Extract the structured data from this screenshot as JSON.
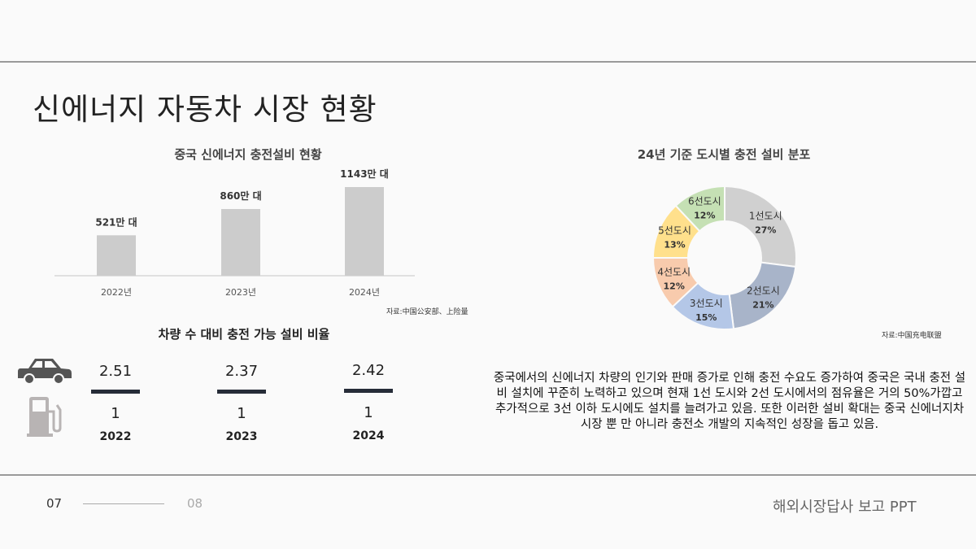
{
  "title": "신에너지 자동차 시장 현황",
  "chart_data": [
    {
      "type": "bar",
      "title": "중국 신에너지 충전설비 현황",
      "categories": [
        "2022년",
        "2023년",
        "2024년"
      ],
      "values": [
        521,
        860,
        1143
      ],
      "data_labels": [
        "521만 대",
        "860만 대",
        "1143만 대"
      ],
      "unit": "만 대",
      "grid": false,
      "color": "#cccccc",
      "source": "자료:中国公安部、上险量"
    },
    {
      "type": "pie",
      "variant": "donut",
      "title": "24년 기준 도시별 충전 설비 분포",
      "categories": [
        "1선도시",
        "2선도시",
        "3선도시",
        "4선도시",
        "5선도시",
        "6선도시"
      ],
      "values": [
        27,
        21,
        15,
        12,
        13,
        12
      ],
      "labels": [
        "27%",
        "21%",
        "15%",
        "12%",
        "13%",
        "12%"
      ],
      "colors": [
        "#d0d0d0",
        "#a8b4c9",
        "#b4c7e7",
        "#f8cbad",
        "#ffe08c",
        "#c5e0b4"
      ],
      "source": "자료:中国充电联盟"
    }
  ],
  "ratio": {
    "title": "차량 수 대비 충전 가능 설비 비율",
    "icons": [
      "car-icon",
      "fuel-pump-icon"
    ],
    "items": [
      {
        "value": "2.51",
        "base": "1",
        "year": "2022"
      },
      {
        "value": "2.37",
        "base": "1",
        "year": "2023"
      },
      {
        "value": "2.42",
        "base": "1",
        "year": "2024"
      }
    ]
  },
  "paragraph": "중국에서의 신에너지 차량의 인기와 판매 증가로 인해 충전 수요도 증가하여 중국은 국내 충전 설비 설치에 꾸준히 노력하고 있으며 현재 1선 도시와 2선 도시에서의 점유율은 거의 50%가깝고 추가적으로 3선 이하 도시에도 설치를 늘려가고 있음. 또한 이러한 설비 확대는 중국 신에너지차 시장 뿐 만 아니라 충전소 개발의 지속적인 성장을 돕고 있음.",
  "footer": {
    "page_current": "07",
    "page_next": "08",
    "label": "해외시장답사 보고 PPT"
  }
}
